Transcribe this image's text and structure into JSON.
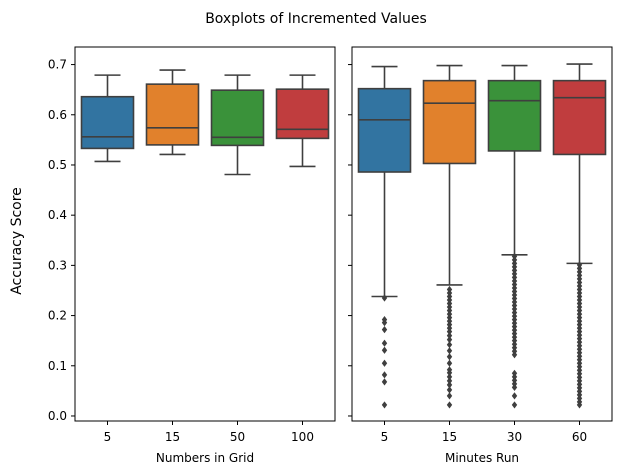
{
  "figure": {
    "suptitle": "Boxplots of Incremented Values",
    "shared_ylabel": "Accuracy Score"
  },
  "chart_data": [
    {
      "type": "box",
      "xlabel": "Numbers in Grid",
      "ylabel": "Accuracy Score",
      "ylim": [
        -0.01,
        0.735
      ],
      "yticks": [
        "0.0",
        "0.1",
        "0.2",
        "0.3",
        "0.4",
        "0.5",
        "0.6",
        "0.7"
      ],
      "categories": [
        "5",
        "15",
        "50",
        "100"
      ],
      "colors": [
        "#3274a1",
        "#e1812c",
        "#3a923a",
        "#c03d3e"
      ],
      "boxes": [
        {
          "whislo": 0.507,
          "q1": 0.533,
          "med": 0.556,
          "q3": 0.636,
          "whishi": 0.679,
          "fliers": []
        },
        {
          "whislo": 0.521,
          "q1": 0.54,
          "med": 0.574,
          "q3": 0.661,
          "whishi": 0.689,
          "fliers": []
        },
        {
          "whislo": 0.481,
          "q1": 0.539,
          "med": 0.555,
          "q3": 0.649,
          "whishi": 0.679,
          "fliers": []
        },
        {
          "whislo": 0.497,
          "q1": 0.553,
          "med": 0.571,
          "q3": 0.651,
          "whishi": 0.679,
          "fliers": []
        }
      ]
    },
    {
      "type": "box",
      "xlabel": "Minutes Run",
      "ylim": [
        -0.01,
        0.735
      ],
      "categories": [
        "5",
        "15",
        "30",
        "60"
      ],
      "colors": [
        "#3274a1",
        "#e1812c",
        "#3a923a",
        "#c03d3e"
      ],
      "boxes": [
        {
          "whislo": 0.238,
          "q1": 0.486,
          "med": 0.59,
          "q3": 0.652,
          "whishi": 0.696,
          "fliers": [
            0.235,
            0.192,
            0.186,
            0.172,
            0.145,
            0.131,
            0.105,
            0.082,
            0.068,
            0.022
          ]
        },
        {
          "whislo": 0.261,
          "q1": 0.503,
          "med": 0.623,
          "q3": 0.668,
          "whishi": 0.698,
          "fliers": [
            0.252,
            0.245,
            0.238,
            0.231,
            0.224,
            0.217,
            0.21,
            0.203,
            0.196,
            0.189,
            0.182,
            0.175,
            0.168,
            0.16,
            0.152,
            0.142,
            0.13,
            0.118,
            0.105,
            0.092,
            0.086,
            0.078,
            0.07,
            0.062,
            0.052,
            0.04,
            0.022
          ]
        },
        {
          "whislo": 0.321,
          "q1": 0.528,
          "med": 0.628,
          "q3": 0.668,
          "whishi": 0.698,
          "fliers": [
            0.318,
            0.311,
            0.304,
            0.297,
            0.29,
            0.283,
            0.276,
            0.269,
            0.262,
            0.255,
            0.248,
            0.241,
            0.234,
            0.227,
            0.22,
            0.213,
            0.206,
            0.199,
            0.192,
            0.185,
            0.178,
            0.171,
            0.164,
            0.157,
            0.15,
            0.143,
            0.136,
            0.129,
            0.122,
            0.085,
            0.078,
            0.071,
            0.064,
            0.057,
            0.04,
            0.022
          ]
        },
        {
          "whislo": 0.304,
          "q1": 0.521,
          "med": 0.634,
          "q3": 0.668,
          "whishi": 0.701,
          "fliers": [
            0.301,
            0.294,
            0.287,
            0.28,
            0.273,
            0.266,
            0.259,
            0.252,
            0.245,
            0.238,
            0.231,
            0.224,
            0.217,
            0.21,
            0.203,
            0.196,
            0.189,
            0.182,
            0.175,
            0.168,
            0.161,
            0.154,
            0.147,
            0.14,
            0.133,
            0.126,
            0.119,
            0.112,
            0.105,
            0.098,
            0.091,
            0.084,
            0.077,
            0.07,
            0.063,
            0.056,
            0.049,
            0.042,
            0.035,
            0.028,
            0.022
          ]
        }
      ]
    }
  ]
}
